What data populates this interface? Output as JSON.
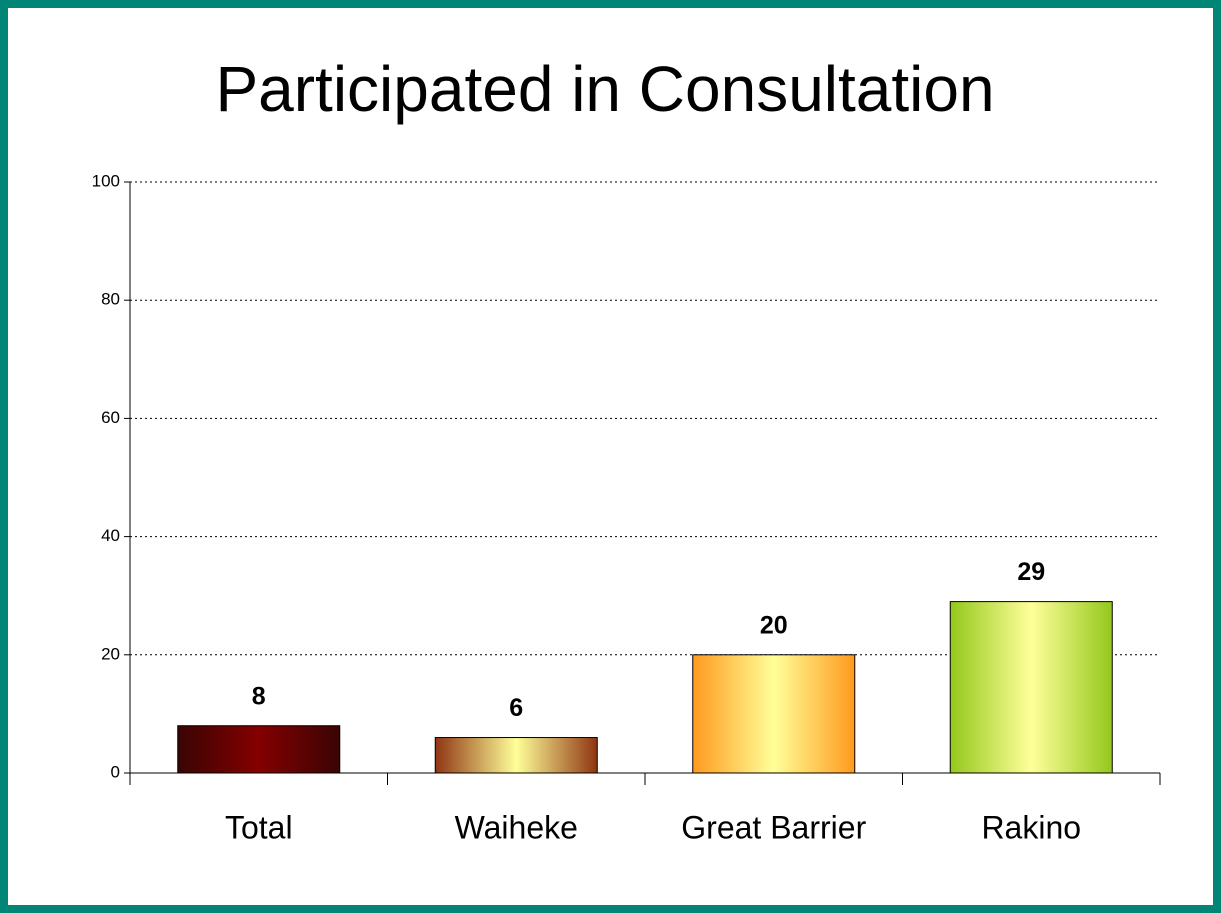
{
  "chart_data": {
    "type": "bar",
    "title": "Participated in Consultation",
    "categories": [
      "Total",
      "Waiheke",
      "Great Barrier",
      "Rakino"
    ],
    "values": [
      8,
      6,
      20,
      29
    ],
    "colors": [
      [
        "#3a0404",
        "#840000"
      ],
      [
        "#8f3512",
        "#ffff99"
      ],
      [
        "#ff9a1e",
        "#ffff99"
      ],
      [
        "#94c81c",
        "#ffff99"
      ]
    ],
    "ylim": [
      0,
      100
    ],
    "yticks": [
      0,
      20,
      40,
      60,
      80,
      100
    ],
    "grid": true
  }
}
